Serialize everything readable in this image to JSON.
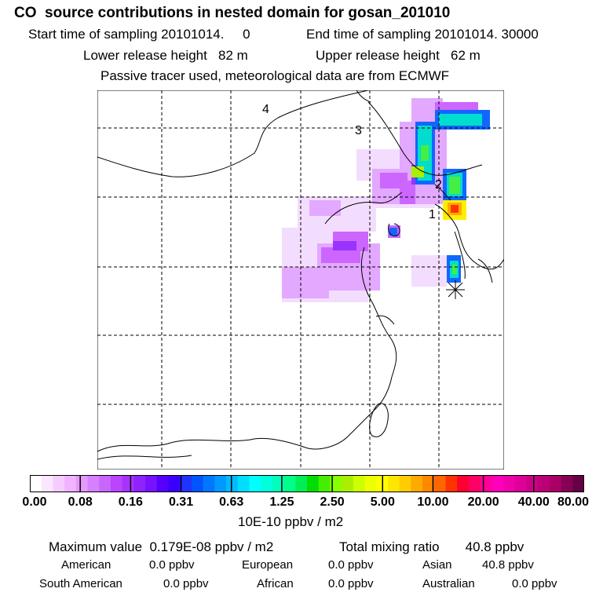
{
  "header": {
    "title": "CO  source contributions in nested domain for gosan_201010",
    "start_time": "Start time of sampling 20101014.     0",
    "end_time": "End time of sampling 20101014. 30000",
    "lower_release": "Lower release height   82 m",
    "upper_release": "Upper release height   62 m",
    "tracer_info": "Passive tracer used, meteorological data are from ECMWF"
  },
  "map": {
    "region_labels": [
      "1",
      "2",
      "3",
      "4"
    ],
    "receptor_marker": "star-receptor-icon"
  },
  "colorbar": {
    "units": "10E-10 ppbv / m2",
    "tick_labels": [
      "0.00",
      "0.08",
      "0.16",
      "0.31",
      "0.63",
      "1.25",
      "2.50",
      "5.00",
      "10.00",
      "20.00",
      "40.00",
      "80.00"
    ],
    "colors": [
      "#ffffff",
      "#fbe6ff",
      "#f6ccff",
      "#f0b3ff",
      "#e599ff",
      "#d580ff",
      "#c866ff",
      "#bb44ff",
      "#a833ff",
      "#8f22ff",
      "#7711ff",
      "#5500ff",
      "#3a00ff",
      "#2233ff",
      "#0055ff",
      "#0077ff",
      "#0099ff",
      "#00bbff",
      "#00ddff",
      "#00ffff",
      "#00ffdd",
      "#00ffbb",
      "#00ff88",
      "#00ee55",
      "#00dd00",
      "#44ee00",
      "#88ff00",
      "#aaee00",
      "#ccff00",
      "#eeff00",
      "#ffff00",
      "#ffe600",
      "#ffcc00",
      "#ffaa00",
      "#ff8800",
      "#ff6600",
      "#ff3300",
      "#ff0033",
      "#ff0066",
      "#ff0099",
      "#ff00bb",
      "#ee00aa",
      "#dd0099",
      "#cc0088",
      "#bb0077",
      "#aa0066",
      "#880055",
      "#660044"
    ]
  },
  "stats": {
    "max_value": "Maximum value  0.179E-08 ppbv / m2",
    "total_mixing": "Total mixing ratio       40.8 ppbv",
    "american": "American",
    "american_value": "0.0 ppbv",
    "european": "European",
    "european_value": "0.0 ppbv",
    "asian": "Asian",
    "asian_value": "40.8 ppbv",
    "south_american": "South American",
    "south_american_value": "0.0 ppbv",
    "african": "African",
    "african_value": "0.0 ppbv",
    "australian": "Australian",
    "australian_value": "0.0 ppbv"
  }
}
